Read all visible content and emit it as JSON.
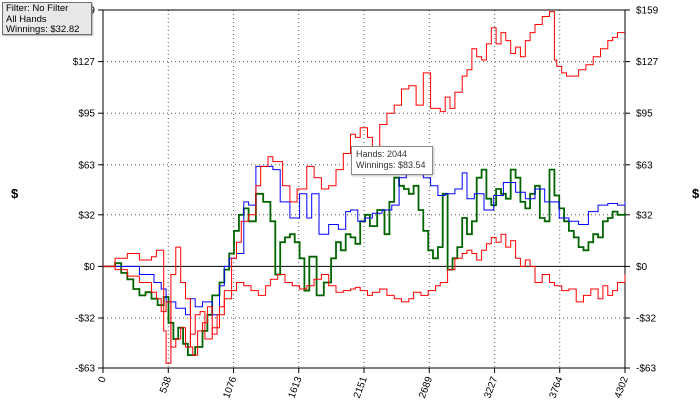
{
  "filter_box": {
    "filter": "Filter: No Filter",
    "hands": "All Hands",
    "winnings": "Winnings: $32.82"
  },
  "tooltip": {
    "hands": "Hands: 2044",
    "winnings": "Winnings: $83.54"
  },
  "chart_data": {
    "type": "line",
    "xlabel": "",
    "ylabel": "$",
    "ylabel_right": "$",
    "xlim": [
      0,
      4302
    ],
    "ylim": [
      -63,
      159
    ],
    "x_ticks": [
      0,
      538,
      1076,
      1613,
      2151,
      2689,
      3227,
      3764,
      4302
    ],
    "y_ticks": [
      -63,
      -32,
      0,
      32,
      63,
      95,
      127,
      159
    ],
    "y_tick_labels": [
      "-$63",
      "-$32",
      "$0",
      "$32",
      "$63",
      "$95",
      "$127",
      "$159"
    ],
    "grid": true,
    "zero_line": true,
    "colors": {
      "green": "#006400",
      "blue": "#0000ff",
      "red": "#ff0000"
    },
    "series": [
      {
        "color": "green",
        "x": [
          0,
          100,
          150,
          200,
          250,
          300,
          350,
          400,
          450,
          500,
          540,
          580,
          620,
          660,
          700,
          760,
          820,
          860,
          900,
          960,
          1000,
          1040,
          1080,
          1120,
          1160,
          1200,
          1260,
          1320,
          1380,
          1420,
          1460,
          1500,
          1540,
          1580,
          1620,
          1660,
          1700,
          1760,
          1820,
          1880,
          1920,
          1960,
          2000,
          2040,
          2080,
          2120,
          2160,
          2200,
          2260,
          2320,
          2360,
          2400,
          2440,
          2480,
          2520,
          2560,
          2600,
          2640,
          2680,
          2720,
          2760,
          2800,
          2840,
          2880,
          2920,
          2960,
          3000,
          3040,
          3080,
          3120,
          3160,
          3200,
          3240,
          3280,
          3320,
          3360,
          3400,
          3440,
          3480,
          3520,
          3560,
          3600,
          3640,
          3680,
          3720,
          3760,
          3800,
          3840,
          3880,
          3920,
          3960,
          4000,
          4040,
          4080,
          4120,
          4160,
          4200,
          4240,
          4302
        ],
        "y": [
          0,
          2,
          -4,
          -8,
          -14,
          -18,
          -16,
          -20,
          -24,
          -19,
          -35,
          -45,
          -38,
          -48,
          -55,
          -50,
          -40,
          -30,
          -18,
          -10,
          -2,
          8,
          22,
          32,
          36,
          28,
          45,
          40,
          28,
          -5,
          15,
          18,
          20,
          15,
          5,
          -15,
          6,
          -18,
          -10,
          5,
          15,
          10,
          20,
          18,
          14,
          28,
          32,
          25,
          35,
          20,
          40,
          55,
          50,
          48,
          45,
          50,
          35,
          22,
          10,
          5,
          12,
          45,
          -2,
          5,
          12,
          30,
          20,
          28,
          55,
          60,
          42,
          38,
          48,
          45,
          42,
          60,
          55,
          40,
          36,
          45,
          50,
          30,
          28,
          60,
          44,
          36,
          28,
          22,
          18,
          12,
          10,
          15,
          20,
          18,
          28,
          30,
          34,
          32,
          33
        ]
      },
      {
        "color": "blue",
        "x": [
          0,
          150,
          300,
          330,
          420,
          480,
          520,
          540,
          600,
          680,
          720,
          760,
          820,
          900,
          960,
          1000,
          1040,
          1100,
          1160,
          1200,
          1260,
          1320,
          1400,
          1460,
          1540,
          1620,
          1680,
          1720,
          1780,
          1860,
          1940,
          2000,
          2040,
          2100,
          2160,
          2220,
          2300,
          2380,
          2440,
          2500,
          2560,
          2640,
          2700,
          2760,
          2820,
          2900,
          2960,
          3000,
          3060,
          3140,
          3220,
          3300,
          3400,
          3480,
          3560,
          3640,
          3720,
          3760,
          3840,
          3920,
          4000,
          4080,
          4160,
          4240,
          4302
        ],
        "y": [
          0,
          0,
          -5,
          -5,
          -10,
          -14,
          -22,
          -22,
          -26,
          -30,
          -20,
          -25,
          -22,
          -30,
          -12,
          0,
          5,
          8,
          40,
          38,
          62,
          62,
          60,
          40,
          30,
          45,
          30,
          45,
          20,
          26,
          23,
          34,
          35,
          28,
          30,
          33,
          35,
          38,
          55,
          62,
          60,
          55,
          50,
          44,
          45,
          48,
          58,
          42,
          45,
          35,
          44,
          52,
          46,
          42,
          48,
          40,
          40,
          30,
          28,
          26,
          34,
          38,
          39,
          38,
          40
        ]
      },
      {
        "color": "red",
        "x": [
          0,
          100,
          200,
          300,
          400,
          440,
          500,
          520,
          560,
          600,
          640,
          680,
          720,
          740,
          780,
          820,
          860,
          900,
          940,
          1000,
          1060,
          1100,
          1140,
          1200,
          1260,
          1300,
          1360,
          1400,
          1480,
          1540,
          1600,
          1680,
          1740,
          1800,
          1860,
          1920,
          1980,
          2040,
          2080,
          2120,
          2180,
          2220,
          2280,
          2340,
          2400,
          2460,
          2520,
          2580,
          2640,
          2700,
          2780,
          2820,
          2860,
          2900,
          2960,
          3000,
          3040,
          3080,
          3120,
          3160,
          3200,
          3240,
          3280,
          3320,
          3360,
          3400,
          3440,
          3480,
          3520,
          3560,
          3620,
          3680,
          3720,
          3740,
          3780,
          3820,
          3860,
          3920,
          3980,
          4040,
          4100,
          4160,
          4200,
          4240,
          4302
        ],
        "y": [
          0,
          5,
          8,
          4,
          6,
          10,
          -40,
          -60,
          -5,
          12,
          -10,
          -20,
          -50,
          -55,
          -40,
          -35,
          -25,
          -42,
          -30,
          -15,
          5,
          15,
          28,
          32,
          50,
          62,
          68,
          65,
          50,
          40,
          48,
          62,
          55,
          48,
          50,
          60,
          70,
          82,
          80,
          86,
          80,
          74,
          88,
          95,
          100,
          110,
          112,
          100,
          120,
          98,
          96,
          105,
          98,
          108,
          118,
          122,
          135,
          130,
          128,
          138,
          148,
          138,
          145,
          140,
          132,
          136,
          130,
          140,
          145,
          150,
          155,
          158,
          128,
          124,
          120,
          118,
          118,
          122,
          125,
          130,
          135,
          140,
          142,
          145,
          145
        ]
      },
      {
        "color": "red",
        "x": [
          0,
          100,
          200,
          300,
          400,
          440,
          480,
          520,
          560,
          600,
          640,
          680,
          720,
          760,
          800,
          840,
          900,
          960,
          1000,
          1060,
          1100,
          1160,
          1220,
          1280,
          1340,
          1380,
          1440,
          1500,
          1560,
          1620,
          1680,
          1740,
          1800,
          1860,
          1920,
          1980,
          2040,
          2080,
          2120,
          2180,
          2220,
          2280,
          2340,
          2400,
          2460,
          2520,
          2560,
          2620,
          2680,
          2740,
          2780,
          2840,
          2900,
          2960,
          3000,
          3040,
          3080,
          3120,
          3160,
          3200,
          3240,
          3280,
          3320,
          3360,
          3400,
          3440,
          3480,
          3520,
          3560,
          3620,
          3680,
          3720,
          3780,
          3840,
          3900,
          3960,
          4020,
          4080,
          4120,
          4160,
          4200,
          4240,
          4302
        ],
        "y": [
          0,
          -2,
          -6,
          -10,
          -16,
          -20,
          -28,
          -22,
          -50,
          -45,
          -38,
          -50,
          -42,
          -30,
          -28,
          -45,
          -38,
          -25,
          -20,
          -15,
          -10,
          -12,
          -15,
          -18,
          -12,
          -8,
          -5,
          -10,
          -12,
          -14,
          -12,
          -8,
          -5,
          -12,
          -16,
          -15,
          -14,
          -13,
          -15,
          -18,
          -16,
          -14,
          -18,
          -20,
          -22,
          -20,
          -16,
          -18,
          -15,
          -12,
          -10,
          -2,
          5,
          8,
          10,
          8,
          4,
          10,
          14,
          18,
          15,
          20,
          12,
          16,
          5,
          0,
          4,
          0,
          -10,
          -5,
          -10,
          -12,
          -15,
          -14,
          -22,
          -18,
          -14,
          -20,
          -12,
          -18,
          -15,
          -10,
          -5
        ]
      }
    ]
  }
}
